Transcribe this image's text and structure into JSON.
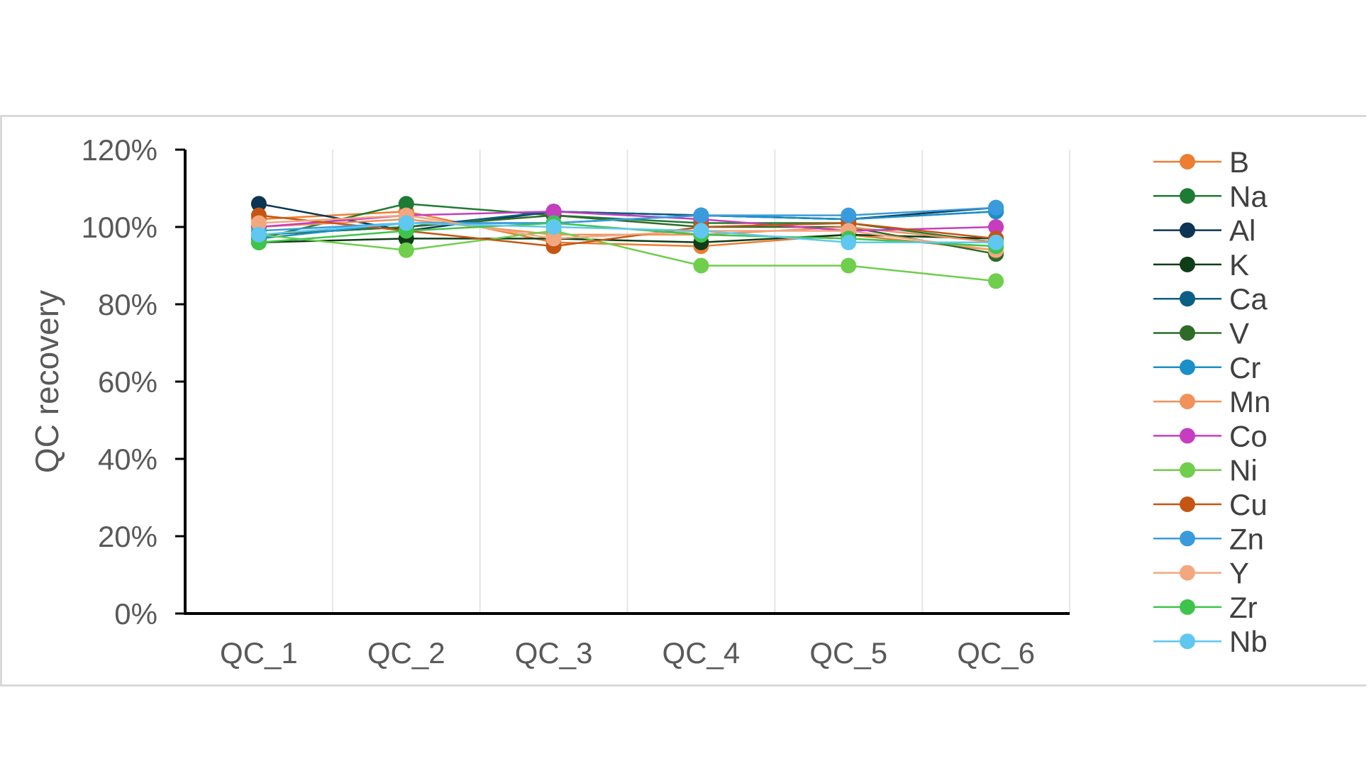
{
  "chart_data": {
    "type": "line",
    "title": "",
    "xlabel": "",
    "ylabel": "QC recovery",
    "categories": [
      "QC_1",
      "QC_2",
      "QC_3",
      "QC_4",
      "QC_5",
      "QC_6"
    ],
    "y_ticks": [
      "0%",
      "20%",
      "40%",
      "60%",
      "80%",
      "100%",
      "120%"
    ],
    "ylim": [
      0,
      120
    ],
    "grid": "vertical",
    "legend_position": "right",
    "series": [
      {
        "name": "B",
        "color": "#ed7d31",
        "values": [
          102,
          104,
          96,
          95,
          98,
          94
        ]
      },
      {
        "name": "Na",
        "color": "#1e7b34",
        "values": [
          97,
          106,
          103,
          101,
          101,
          96
        ]
      },
      {
        "name": "Al",
        "color": "#0b3552",
        "values": [
          106,
          99,
          104,
          103,
          102,
          105
        ]
      },
      {
        "name": "K",
        "color": "#0f3d17",
        "values": [
          96,
          97,
          97,
          96,
          98,
          97
        ]
      },
      {
        "name": "Ca",
        "color": "#0a5f84",
        "values": [
          98,
          100,
          104,
          103,
          102,
          104
        ]
      },
      {
        "name": "V",
        "color": "#2f6b28",
        "values": [
          98,
          100,
          103,
          100,
          100,
          93
        ]
      },
      {
        "name": "Cr",
        "color": "#1b8fc7",
        "values": [
          97,
          101,
          101,
          103,
          102,
          104
        ]
      },
      {
        "name": "Mn",
        "color": "#f0925a",
        "values": [
          100,
          102,
          98,
          98,
          100,
          96
        ]
      },
      {
        "name": "Co",
        "color": "#c63dc0",
        "values": [
          100,
          103,
          104,
          102,
          99,
          100
        ]
      },
      {
        "name": "Ni",
        "color": "#6fce4b",
        "values": [
          98,
          94,
          99,
          90,
          90,
          86
        ]
      },
      {
        "name": "Cu",
        "color": "#c55512",
        "values": [
          103,
          99,
          95,
          100,
          101,
          97
        ]
      },
      {
        "name": "Zn",
        "color": "#3a9bdc",
        "values": [
          99,
          101,
          101,
          103,
          103,
          105
        ]
      },
      {
        "name": "Y",
        "color": "#f2a77f",
        "values": [
          101,
          103,
          97,
          99,
          99,
          94
        ]
      },
      {
        "name": "Zr",
        "color": "#3ec44a",
        "values": [
          96,
          99,
          101,
          98,
          97,
          95
        ]
      },
      {
        "name": "Nb",
        "color": "#5fc7f0",
        "values": [
          98,
          101,
          100,
          99,
          96,
          96
        ]
      }
    ]
  }
}
